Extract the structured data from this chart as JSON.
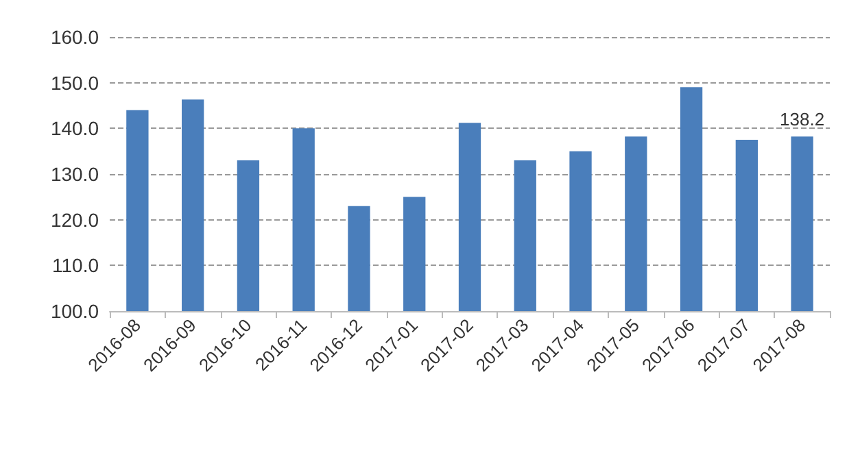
{
  "chart_data": {
    "type": "bar",
    "categories": [
      "2016-08",
      "2016-09",
      "2016-10",
      "2016-11",
      "2016-12",
      "2017-01",
      "2017-02",
      "2017-03",
      "2017-04",
      "2017-05",
      "2017-06",
      "2017-07",
      "2017-08"
    ],
    "values": [
      144,
      146.3,
      133,
      140,
      123,
      125,
      141.2,
      133,
      135,
      138.2,
      149,
      137.5,
      138.2
    ],
    "value_labels": [
      null,
      null,
      null,
      null,
      null,
      null,
      null,
      null,
      null,
      null,
      null,
      null,
      "138.2"
    ],
    "color": "#4a7ebb",
    "ylim": [
      100,
      160
    ],
    "yticks": [
      {
        "value": 100,
        "label": "100.0"
      },
      {
        "value": 110,
        "label": "110.0"
      },
      {
        "value": 120,
        "label": "120.0"
      },
      {
        "value": 130,
        "label": "130.0"
      },
      {
        "value": 140,
        "label": "140.0"
      },
      {
        "value": 150,
        "label": "150.0"
      },
      {
        "value": 160,
        "label": "160.0"
      }
    ],
    "grid": "y"
  }
}
